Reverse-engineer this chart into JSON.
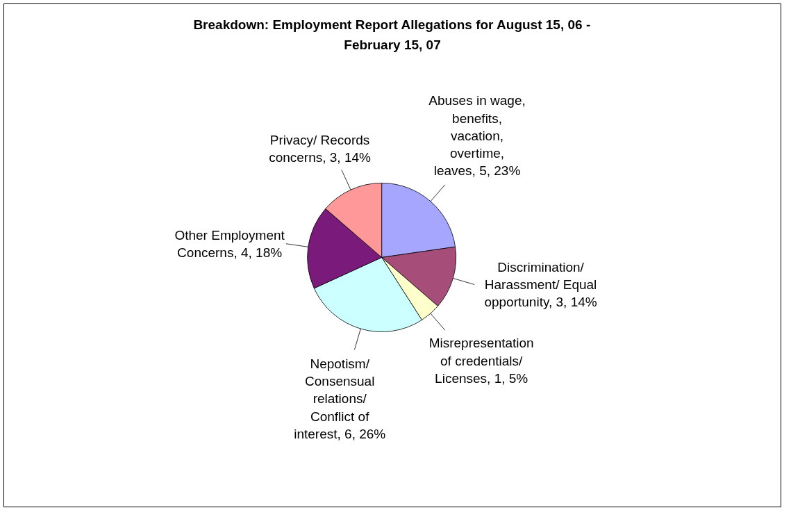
{
  "chart_data": {
    "type": "pie",
    "title": "Breakdown: Employment Report Allegations for August 15, 06 - February 15, 07",
    "categories": [
      "Abuses in wage, benefits, vacation, overtime, leaves",
      "Discrimination/ Harassment/ Equal opportunity",
      "Misrepresentation of credentials/ Licenses",
      "Nepotism/ Consensual relations/ Conflict of interest",
      "Other Employment Concerns",
      "Privacy/ Records concerns"
    ],
    "values": [
      5,
      3,
      1,
      6,
      4,
      3
    ],
    "value_labels": [
      "5, 23%",
      "3, 14%",
      "1, 5%",
      "6, 26%",
      "4, 18%",
      "3, 14%"
    ],
    "colors": [
      "#a6a6ff",
      "#a64d79",
      "#ffffcc",
      "#ccffff",
      "#7a1a7a",
      "#ff9999"
    ]
  }
}
